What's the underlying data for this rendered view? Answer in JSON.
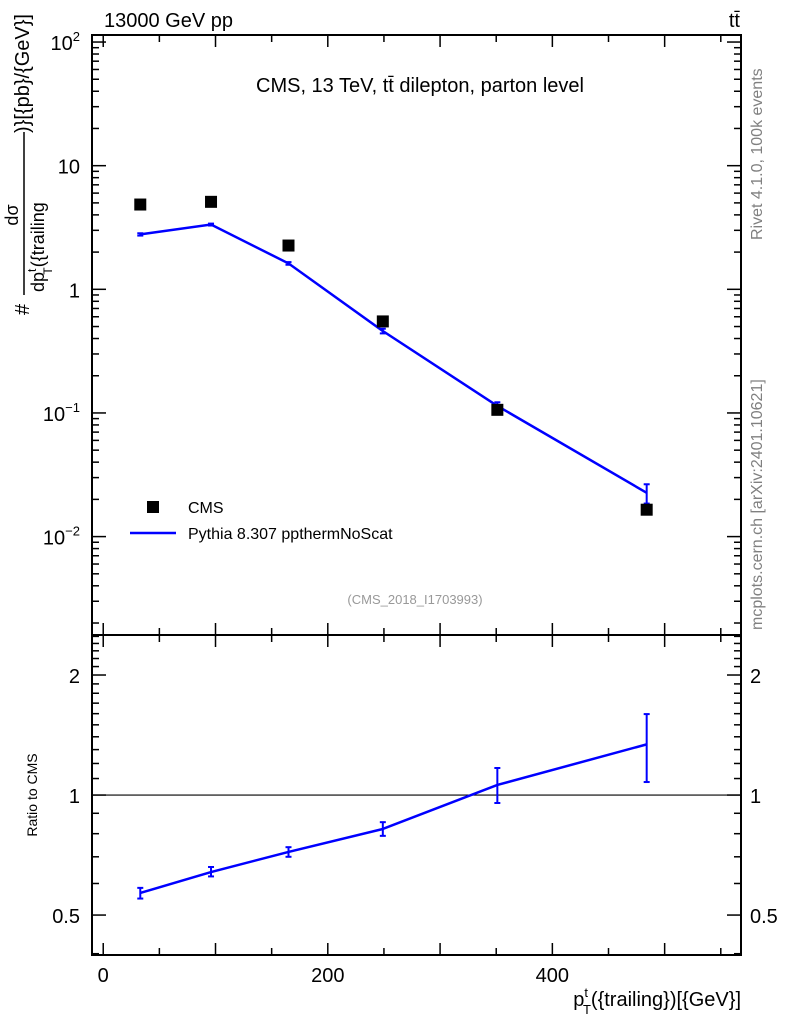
{
  "header": {
    "left": "13000 GeV pp",
    "right": "tt̄"
  },
  "side_labels": {
    "rivet": "Rivet 4.1.0,  100k events",
    "mcplots": "mcplots.cern.ch [arXiv:2401.10621]"
  },
  "colors": {
    "data": "#000000",
    "mc": "#0000ff",
    "side_text": "#808080"
  },
  "chart_data": [
    {
      "type": "scatter",
      "title": "CMS, 13 TeV, tt̄ dilepton, parton level",
      "watermark": "(CMS_2018_I1703993)",
      "ylabel": "# dσ / dp_T^t({trailing})}[{pb}/{GeV}]",
      "ylabel_parts": {
        "num": "dσ",
        "den": "dp",
        "den_sup": "t",
        "den_sub": "T",
        "den_rest": "({trailing",
        "rest": ")}[{pb}/{GeV}]",
        "prefix": "#"
      },
      "yscale": "log",
      "ylim": [
        0.0016,
        114
      ],
      "xlim": [
        -10,
        568
      ],
      "ytick_labels": [
        {
          "v": 100,
          "base": "10",
          "exp": "2"
        },
        {
          "v": 10,
          "base": "10",
          "exp": ""
        },
        {
          "v": 1,
          "base": "1",
          "exp": ""
        },
        {
          "v": 0.1,
          "base": "10",
          "exp": "−1"
        },
        {
          "v": 0.01,
          "base": "10",
          "exp": "−2"
        }
      ],
      "legend": {
        "placement": "lower-left",
        "entries": [
          "CMS",
          "Pythia 8.307 ppthermNoScat"
        ]
      },
      "series": [
        {
          "name": "CMS",
          "style": "marker-square",
          "x": [
            33,
            96,
            165,
            249,
            351,
            484
          ],
          "y": [
            4.85,
            5.1,
            2.26,
            0.55,
            0.106,
            0.0165
          ]
        },
        {
          "name": "Pythia 8.307 ppthermNoScat",
          "style": "line",
          "x": [
            33,
            96,
            165,
            249,
            351,
            484
          ],
          "y": [
            2.78,
            3.34,
            1.62,
            0.46,
            0.114,
            0.0226
          ],
          "yerr_low": [
            2.72,
            3.28,
            1.58,
            0.44,
            0.106,
            0.0185
          ],
          "yerr_high": [
            2.84,
            3.4,
            1.66,
            0.48,
            0.122,
            0.0265
          ]
        }
      ]
    },
    {
      "type": "line",
      "ylabel": "Ratio to CMS",
      "xlabel_parts": {
        "base": "p",
        "sup": "t",
        "sub": "T",
        "rest": "({trailing})[{GeV}]"
      },
      "yscale": "log",
      "ylim": [
        0.397,
        2.52
      ],
      "xlim": [
        -10,
        568
      ],
      "xticks": [
        0,
        200,
        400
      ],
      "xtick_labels": [
        "0",
        "200",
        "400"
      ],
      "yticks": [
        0.5,
        1,
        2
      ],
      "ytick_labels": [
        "0.5",
        "1",
        "2"
      ],
      "reference_line": 1,
      "series": [
        {
          "name": "Pythia 8.307 ppthermNoScat",
          "x": [
            33,
            96,
            165,
            249,
            351,
            484
          ],
          "y": [
            0.568,
            0.641,
            0.72,
            0.822,
            1.06,
            1.34
          ],
          "yerr_low": [
            0.55,
            0.625,
            0.7,
            0.79,
            0.955,
            1.078
          ],
          "yerr_high": [
            0.585,
            0.66,
            0.74,
            0.855,
            1.169,
            1.596
          ]
        }
      ]
    }
  ]
}
